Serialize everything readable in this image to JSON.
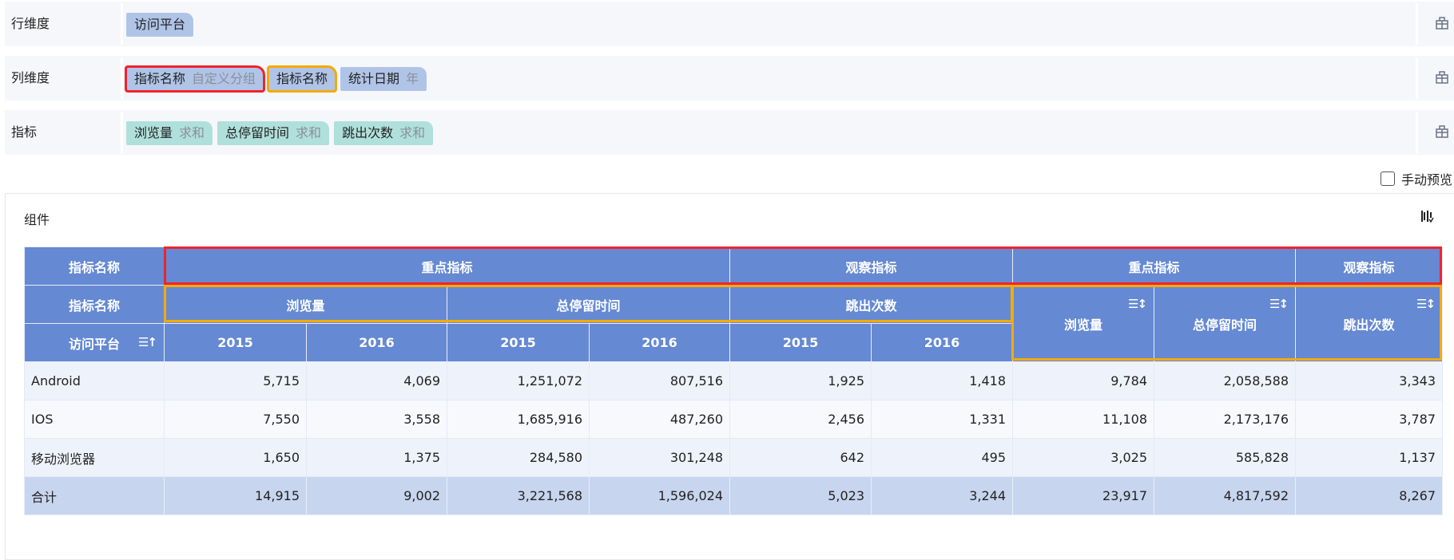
{
  "filters": [
    {
      "label": "行维度",
      "chips": [
        {
          "text": "访问平台",
          "sub": "",
          "color": "blue"
        }
      ]
    },
    {
      "label": "列维度",
      "chips": [
        {
          "text": "指标名称",
          "sub": "自定义分组",
          "color": "blue"
        },
        {
          "text": "指标名称",
          "sub": "",
          "color": "blue"
        },
        {
          "text": "统计日期",
          "sub": "年",
          "color": "blue"
        }
      ]
    },
    {
      "label": "指标",
      "chips": [
        {
          "text": "浏览量",
          "sub": "求和",
          "color": "teal"
        },
        {
          "text": "总停留时间",
          "sub": "求和",
          "color": "teal"
        },
        {
          "text": "跳出次数",
          "sub": "求和",
          "color": "teal"
        }
      ]
    }
  ],
  "manual_preview": "手动预览",
  "panel_title": "组件",
  "table": {
    "h1": {
      "label": "指标名称",
      "groups": [
        "重点指标",
        "观察指标",
        "重点指标",
        "观察指标"
      ]
    },
    "h2": {
      "label": "指标名称",
      "metrics": [
        "浏览量",
        "总停留时间",
        "跳出次数",
        "浏览量",
        "总停留时间",
        "跳出次数"
      ]
    },
    "h3": {
      "label": "访问平台",
      "years": [
        "2015",
        "2016",
        "2015",
        "2016",
        "2015",
        "2016"
      ]
    },
    "rows": [
      {
        "name": "Android",
        "values": [
          "5,715",
          "4,069",
          "1,251,072",
          "807,516",
          "1,925",
          "1,418",
          "9,784",
          "2,058,588",
          "3,343"
        ]
      },
      {
        "name": "IOS",
        "values": [
          "7,550",
          "3,558",
          "1,685,916",
          "487,260",
          "2,456",
          "1,331",
          "11,108",
          "2,173,176",
          "3,787"
        ]
      },
      {
        "name": "移动浏览器",
        "values": [
          "1,650",
          "1,375",
          "284,580",
          "301,248",
          "642",
          "495",
          "3,025",
          "585,828",
          "1,137"
        ]
      },
      {
        "name": "合计",
        "values": [
          "14,915",
          "9,002",
          "3,221,568",
          "1,596,024",
          "5,023",
          "3,244",
          "23,917",
          "4,817,592",
          "8,267"
        ]
      }
    ]
  }
}
